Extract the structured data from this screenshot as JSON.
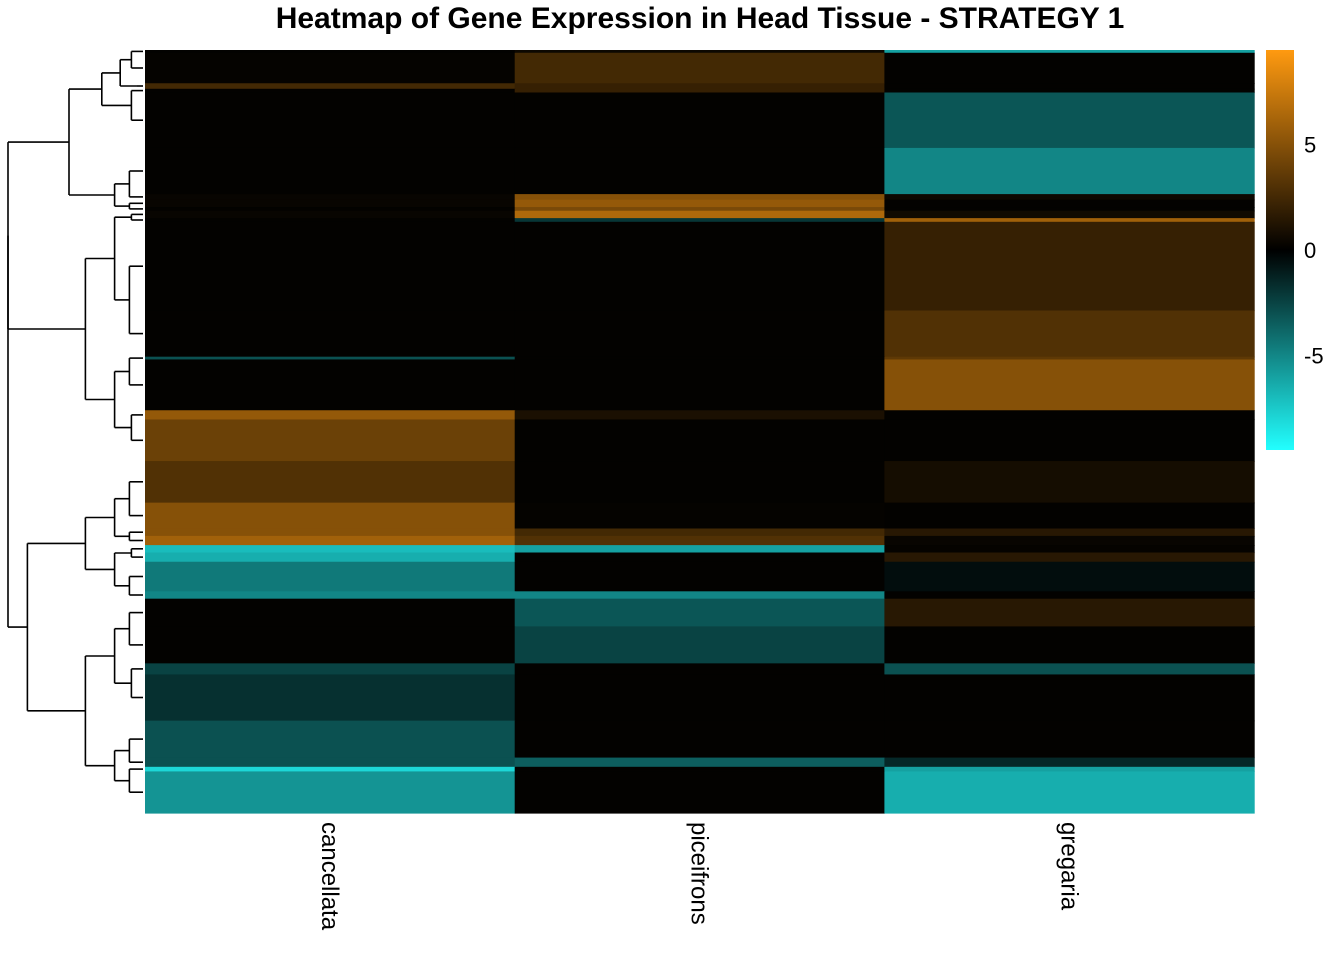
{
  "chart_data": {
    "type": "heatmap",
    "title": "Heatmap of Gene Expression in Head Tissue - STRATEGY 1",
    "columns": [
      "cancellata",
      "piceifrons",
      "gregaria"
    ],
    "color_scale": {
      "low": "#22ffff",
      "mid": "#000000",
      "high": "#ff9a10",
      "range": [
        -9.5,
        9.5
      ],
      "ticks": [
        {
          "value": 5,
          "label": "5"
        },
        {
          "value": 0,
          "label": "0"
        },
        {
          "value": -5,
          "label": "-5"
        }
      ]
    },
    "dendrogram": "rows",
    "row_blocks": [
      {
        "rows": 3,
        "values": [
          0.1,
          0.5,
          -6
        ]
      },
      {
        "rows": 33,
        "values": [
          0.2,
          2.5,
          0.1
        ]
      },
      {
        "rows": 6,
        "values": [
          2.5,
          2.0,
          0.1
        ]
      },
      {
        "rows": 4,
        "values": [
          0.1,
          2.0,
          0.1
        ]
      },
      {
        "rows": 60,
        "values": [
          0.1,
          0.1,
          -3.2
        ]
      },
      {
        "rows": 50,
        "values": [
          0.1,
          0.1,
          -5.0
        ]
      },
      {
        "rows": 6,
        "values": [
          0.3,
          5.0,
          0.5
        ]
      },
      {
        "rows": 8,
        "values": [
          0.3,
          5.5,
          0.1
        ]
      },
      {
        "rows": 4,
        "values": [
          0.1,
          4.5,
          0.1
        ]
      },
      {
        "rows": 8,
        "values": [
          0.3,
          6.5,
          0.6
        ]
      },
      {
        "rows": 4,
        "values": [
          0.1,
          -2.0,
          6.0
        ]
      },
      {
        "rows": 96,
        "values": [
          0.1,
          0.1,
          2.0
        ]
      },
      {
        "rows": 50,
        "values": [
          0.1,
          0.1,
          3.0
        ]
      },
      {
        "rows": 3,
        "values": [
          -3.0,
          0.1,
          3.5
        ]
      },
      {
        "rows": 55,
        "values": [
          0.1,
          0.1,
          5.0
        ]
      },
      {
        "rows": 10,
        "values": [
          5.5,
          1.0,
          0.1
        ]
      },
      {
        "rows": 45,
        "values": [
          4.0,
          0.1,
          0.1
        ]
      },
      {
        "rows": 45,
        "values": [
          3.0,
          0.1,
          0.8
        ]
      },
      {
        "rows": 28,
        "values": [
          5.0,
          0.2,
          0.1
        ]
      },
      {
        "rows": 8,
        "values": [
          5.0,
          2.5,
          1.5
        ]
      },
      {
        "rows": 10,
        "values": [
          6.0,
          3.0,
          0.3
        ]
      },
      {
        "rows": 8,
        "values": [
          -7.0,
          -6.0,
          0.2
        ]
      },
      {
        "rows": 10,
        "values": [
          -6.5,
          0.1,
          1.5
        ]
      },
      {
        "rows": 32,
        "values": [
          -4.5,
          0.1,
          -0.5
        ]
      },
      {
        "rows": 8,
        "values": [
          -5.0,
          -5.0,
          0.1
        ]
      },
      {
        "rows": 30,
        "values": [
          0.1,
          -3.2,
          1.5
        ]
      },
      {
        "rows": 40,
        "values": [
          0.1,
          -2.5,
          0.1
        ]
      },
      {
        "rows": 12,
        "values": [
          -2.5,
          0.1,
          -3.0
        ]
      },
      {
        "rows": 50,
        "values": [
          -1.8,
          0.1,
          0.1
        ]
      },
      {
        "rows": 40,
        "values": [
          -3.0,
          0.1,
          0.1
        ]
      },
      {
        "rows": 10,
        "values": [
          -3.0,
          -3.5,
          -1.5
        ]
      },
      {
        "rows": 5,
        "values": [
          -8.0,
          0.1,
          -6.0
        ]
      },
      {
        "rows": 45,
        "values": [
          -5.5,
          0.1,
          -6.5
        ]
      }
    ]
  }
}
